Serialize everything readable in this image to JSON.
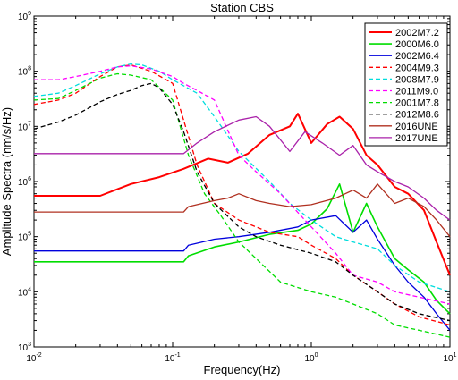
{
  "chart_data": {
    "type": "line",
    "title": "Station CBS",
    "xlabel": "Frequency(Hz)",
    "ylabel": "Amplitude Spectra (nm/s/Hz)",
    "xscale": "log",
    "yscale": "log",
    "xlim": [
      0.01,
      10
    ],
    "ylim": [
      1000,
      1000000000
    ],
    "x_ticks": [
      "10^-2",
      "10^-1",
      "10^0",
      "10^1"
    ],
    "y_ticks": [
      "10^3",
      "10^4",
      "10^5",
      "10^6",
      "10^7",
      "10^8",
      "10^9"
    ],
    "grid": false,
    "legend_position": "top-right",
    "series": [
      {
        "name": "2002M7.2",
        "color": "#ff0000",
        "dash": "solid",
        "width": 2.0,
        "x": [
          0.01,
          0.03,
          0.05,
          0.08,
          0.12,
          0.18,
          0.25,
          0.35,
          0.5,
          0.7,
          0.8,
          1.0,
          1.3,
          1.6,
          2.0,
          2.5,
          3.0,
          4.0,
          5.0,
          6.5,
          8.0,
          10.0
        ],
        "y": [
          550000,
          550000,
          900000,
          1200000,
          1700000,
          2600000,
          2200000,
          3200000,
          7000000,
          10000000,
          17000000,
          5000000,
          11000000,
          15000000,
          9000000,
          3000000,
          2000000,
          800000,
          600000,
          300000,
          80000,
          20000
        ]
      },
      {
        "name": "2000M6.0",
        "color": "#00dd00",
        "dash": "solid",
        "width": 1.6,
        "x": [
          0.01,
          0.05,
          0.12,
          0.13,
          0.2,
          0.3,
          0.5,
          0.8,
          1.0,
          1.3,
          1.6,
          2.0,
          2.5,
          3.0,
          4.0,
          5.0,
          6.5,
          8.0,
          10.0
        ],
        "y": [
          35000,
          35000,
          35000,
          45000,
          65000,
          80000,
          110000,
          130000,
          170000,
          320000,
          900000,
          120000,
          400000,
          150000,
          40000,
          25000,
          15000,
          7000,
          4000
        ]
      },
      {
        "name": "2002M6.4",
        "color": "#0000dd",
        "dash": "solid",
        "width": 1.3,
        "x": [
          0.01,
          0.05,
          0.12,
          0.13,
          0.2,
          0.3,
          0.5,
          0.8,
          1.0,
          1.5,
          2.0,
          2.5,
          3.0,
          4.0,
          5.0,
          6.5,
          8.0,
          10.0
        ],
        "y": [
          55000,
          55000,
          55000,
          70000,
          90000,
          100000,
          120000,
          150000,
          200000,
          240000,
          120000,
          200000,
          90000,
          30000,
          15000,
          8000,
          4000,
          2000
        ]
      },
      {
        "name": "2004M9.3",
        "color": "#ff0000",
        "dash": "dashed",
        "width": 1.3,
        "x": [
          0.01,
          0.015,
          0.02,
          0.03,
          0.04,
          0.05,
          0.07,
          0.1,
          0.15,
          0.2,
          0.3,
          0.5,
          0.8,
          1.0,
          1.5,
          2.0,
          3.0,
          4.0,
          6.0,
          10.0
        ],
        "y": [
          25000000,
          30000000,
          40000000,
          80000000,
          120000000,
          130000000,
          100000000,
          60000000,
          2000000,
          400000,
          200000,
          120000,
          100000,
          70000,
          40000,
          20000,
          10000,
          6000,
          3500,
          2500
        ]
      },
      {
        "name": "2008M7.9",
        "color": "#00dddd",
        "dash": "dashed",
        "width": 1.3,
        "x": [
          0.01,
          0.015,
          0.02,
          0.03,
          0.04,
          0.05,
          0.06,
          0.08,
          0.1,
          0.15,
          0.2,
          0.3,
          0.5,
          0.7,
          1.0,
          1.5,
          2.0,
          3.0,
          4.0,
          6.0,
          10.0
        ],
        "y": [
          35000000,
          40000000,
          55000000,
          90000000,
          120000000,
          135000000,
          130000000,
          100000000,
          70000000,
          40000000,
          15000000,
          3500000,
          1000000,
          400000,
          200000,
          100000,
          80000,
          60000,
          30000,
          15000,
          10000
        ]
      },
      {
        "name": "2011M9.0",
        "color": "#ff00ff",
        "dash": "dashed",
        "width": 1.3,
        "x": [
          0.01,
          0.015,
          0.02,
          0.03,
          0.04,
          0.05,
          0.07,
          0.1,
          0.12,
          0.15,
          0.2,
          0.3,
          0.4,
          0.6,
          1.0,
          1.5,
          2.0,
          3.0,
          4.0,
          6.0,
          10.0
        ],
        "y": [
          70000000,
          70000000,
          80000000,
          100000000,
          120000000,
          125000000,
          110000000,
          80000000,
          60000000,
          45000000,
          30000000,
          3000000,
          1500000,
          600000,
          150000,
          50000,
          20000,
          15000,
          10000,
          8000,
          6000
        ]
      },
      {
        "name": "2001M7.8",
        "color": "#00dd00",
        "dash": "dashed",
        "width": 1.3,
        "x": [
          0.01,
          0.015,
          0.02,
          0.03,
          0.04,
          0.05,
          0.07,
          0.1,
          0.13,
          0.17,
          0.22,
          0.3,
          0.4,
          0.6,
          1.0,
          1.5,
          2.0,
          3.0,
          4.0,
          6.0,
          10.0
        ],
        "y": [
          30000000,
          32000000,
          45000000,
          75000000,
          90000000,
          85000000,
          70000000,
          30000000,
          3000000,
          600000,
          250000,
          80000,
          40000,
          15000,
          10000,
          8000,
          6000,
          4000,
          2500,
          2000,
          1500
        ]
      },
      {
        "name": "2012M8.6",
        "color": "#000000",
        "dash": "dashed",
        "width": 1.3,
        "x": [
          0.01,
          0.015,
          0.02,
          0.03,
          0.04,
          0.05,
          0.06,
          0.07,
          0.08,
          0.1,
          0.12,
          0.15,
          0.2,
          0.3,
          0.4,
          0.6,
          1.0,
          1.5,
          2.0,
          3.0,
          4.0,
          6.0,
          10.0
        ],
        "y": [
          9000000,
          12000000,
          16000000,
          28000000,
          38000000,
          45000000,
          55000000,
          60000000,
          50000000,
          25000000,
          8000000,
          1500000,
          400000,
          150000,
          100000,
          70000,
          50000,
          35000,
          20000,
          10000,
          6000,
          4000,
          3000
        ]
      },
      {
        "name": "2016UNE",
        "color": "#b03020",
        "dash": "solid",
        "width": 1.3,
        "x": [
          0.01,
          0.05,
          0.12,
          0.13,
          0.2,
          0.25,
          0.3,
          0.4,
          0.5,
          0.7,
          1.0,
          1.5,
          2.0,
          2.5,
          3.0,
          4.0,
          5.0,
          6.5,
          8.0,
          10.0
        ],
        "y": [
          280000,
          280000,
          280000,
          350000,
          450000,
          500000,
          600000,
          450000,
          400000,
          350000,
          380000,
          500000,
          700000,
          500000,
          900000,
          400000,
          500000,
          350000,
          200000,
          100000
        ]
      },
      {
        "name": "2017UNE",
        "color": "#aa22aa",
        "dash": "solid",
        "width": 1.3,
        "x": [
          0.01,
          0.05,
          0.12,
          0.15,
          0.2,
          0.3,
          0.4,
          0.5,
          0.7,
          0.9,
          1.2,
          1.6,
          2.0,
          2.5,
          3.0,
          4.0,
          5.0,
          6.5,
          8.0,
          10.0
        ],
        "y": [
          3200000,
          3200000,
          3200000,
          5000000,
          8000000,
          13000000,
          15000000,
          10000000,
          3500000,
          8000000,
          5000000,
          3000000,
          4500000,
          2000000,
          1500000,
          1000000,
          800000,
          500000,
          300000,
          200000
        ]
      }
    ]
  }
}
